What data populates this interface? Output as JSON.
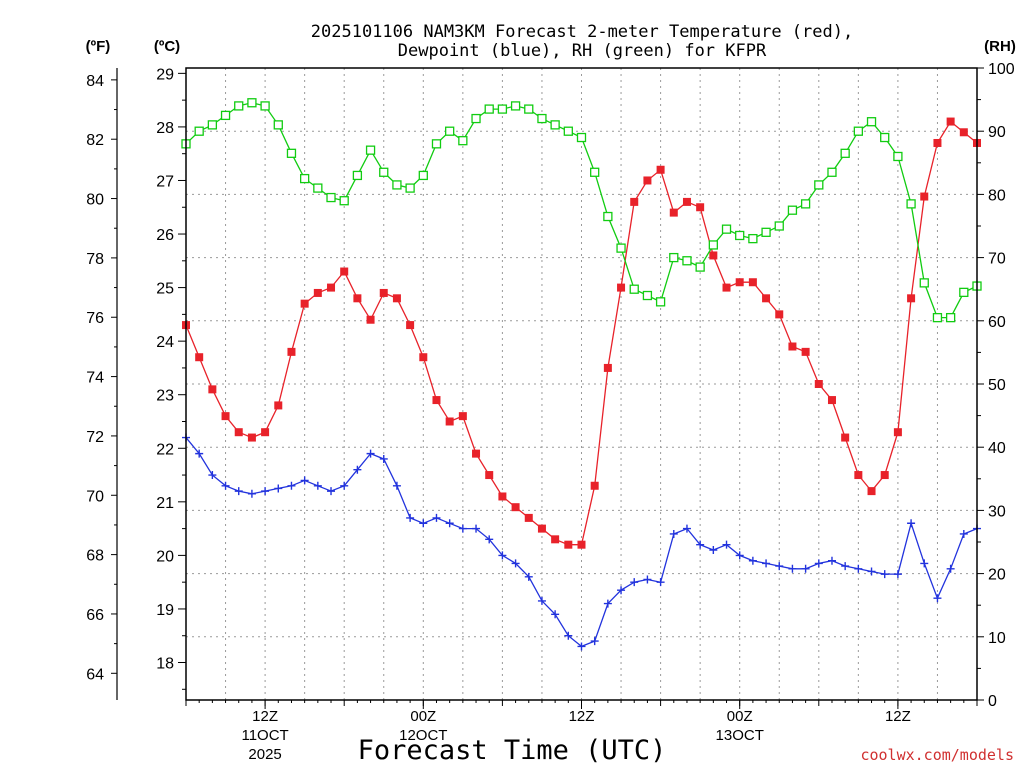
{
  "title": {
    "line1": "2025101106 NAM3KM Forecast 2-meter Temperature (red),",
    "line2": "Dewpoint (blue), RH (green) for KFPR"
  },
  "axes": {
    "f_unit": "(ºF)",
    "c_unit": "(ºC)",
    "rh_unit": "(RH)",
    "f_ticks": [
      "84",
      "82",
      "80",
      "78",
      "76",
      "74",
      "72",
      "70",
      "68",
      "66",
      "64"
    ],
    "c_ticks": [
      "29",
      "28",
      "27",
      "26",
      "25",
      "24",
      "23",
      "22",
      "21",
      "20",
      "19",
      "18"
    ],
    "rh_ticks": [
      "100",
      "90",
      "80",
      "70",
      "60",
      "50",
      "40",
      "30",
      "20",
      "10",
      "0"
    ]
  },
  "xaxis": {
    "title": "Forecast Time (UTC)",
    "ticks": [
      {
        "time": "12Z",
        "date": "11OCT",
        "year": "2025"
      },
      {
        "time": "00Z",
        "date": "12OCT",
        "year": ""
      },
      {
        "time": "12Z",
        "date": "",
        "year": ""
      },
      {
        "time": "00Z",
        "date": "13OCT",
        "year": ""
      },
      {
        "time": "12Z",
        "date": "",
        "year": ""
      }
    ]
  },
  "credit": "coolwx.com/models",
  "colors": {
    "temp": "#e8222a",
    "dewpoint": "#2233dd",
    "rh": "#11cc11"
  },
  "chart_data": {
    "type": "line",
    "title": "2025101106 NAM3KM Forecast 2-meter Temperature (red), Dewpoint (blue), RH (green) for KFPR",
    "xlabel": "Forecast Time (UTC)",
    "x_units": "forecast hours from 2025-10-11 06Z",
    "x": [
      0,
      1,
      2,
      3,
      4,
      5,
      6,
      7,
      8,
      9,
      10,
      11,
      12,
      13,
      14,
      15,
      16,
      17,
      18,
      19,
      20,
      21,
      22,
      23,
      24,
      25,
      26,
      27,
      28,
      29,
      30,
      31,
      32,
      33,
      34,
      35,
      36,
      37,
      38,
      39,
      40,
      41,
      42,
      43,
      44,
      45,
      46,
      47,
      48,
      49,
      50,
      51,
      52,
      53,
      54,
      55,
      56,
      57,
      58,
      59,
      60
    ],
    "xlim": [
      0,
      60
    ],
    "series": [
      {
        "name": "2-meter Temperature",
        "units": "°C",
        "axis": "left",
        "values": [
          24.3,
          23.7,
          23.1,
          22.6,
          22.3,
          22.2,
          22.3,
          22.8,
          23.8,
          24.7,
          24.9,
          25.0,
          25.3,
          24.8,
          24.4,
          24.9,
          24.8,
          24.3,
          23.7,
          22.9,
          22.5,
          22.6,
          21.9,
          21.5,
          21.1,
          20.9,
          20.7,
          20.5,
          20.3,
          20.2,
          20.2,
          21.3,
          23.5,
          25.0,
          26.6,
          27.0,
          27.2,
          26.4,
          26.6,
          26.5,
          25.6,
          25.0,
          25.1,
          25.1,
          24.8,
          24.5,
          23.9,
          23.8,
          23.2,
          22.9,
          22.2,
          21.5,
          21.2,
          21.5,
          22.3,
          24.8,
          26.7,
          27.7,
          28.1,
          27.9,
          27.7
        ]
      },
      {
        "name": "Dewpoint",
        "units": "°C",
        "axis": "left",
        "values": [
          22.2,
          21.9,
          21.5,
          21.3,
          21.2,
          21.15,
          21.2,
          21.25,
          21.3,
          21.4,
          21.3,
          21.2,
          21.3,
          21.6,
          21.9,
          21.8,
          21.3,
          20.7,
          20.6,
          20.7,
          20.6,
          20.5,
          20.5,
          20.3,
          20.0,
          19.85,
          19.6,
          19.15,
          18.9,
          18.5,
          18.3,
          18.4,
          19.1,
          19.35,
          19.5,
          19.55,
          19.5,
          20.4,
          20.5,
          20.2,
          20.1,
          20.2,
          20.0,
          19.9,
          19.85,
          19.8,
          19.75,
          19.75,
          19.85,
          19.9,
          19.8,
          19.75,
          19.7,
          19.65,
          19.65,
          20.6,
          19.85,
          19.2,
          19.75,
          20.4,
          20.5
        ]
      },
      {
        "name": "RH",
        "units": "%",
        "axis": "right",
        "ylim": [
          0,
          100
        ],
        "values": [
          88,
          90,
          91,
          92.5,
          94,
          94.5,
          94,
          91,
          86.5,
          82.5,
          81,
          79.5,
          79,
          83,
          87,
          83.5,
          81.5,
          81,
          83,
          88,
          90,
          88.5,
          92,
          93.5,
          93.5,
          94,
          93.5,
          92,
          91,
          90,
          89,
          83.5,
          76.5,
          71.5,
          65,
          64,
          63,
          70,
          69.5,
          68.5,
          72,
          74.5,
          73.5,
          73,
          74,
          75,
          77.5,
          78.5,
          81.5,
          83.5,
          86.5,
          90,
          91.5,
          89,
          86,
          78.5,
          66,
          60.5,
          60.5,
          64.5,
          65.5
        ]
      }
    ],
    "left_axis_celsius": {
      "label": "(ºC)",
      "ylim": [
        17.3,
        29.1
      ]
    },
    "left_axis_fahrenheit": {
      "label": "(ºF)",
      "ylim": [
        63.1,
        84.4
      ]
    },
    "right_axis": {
      "label": "(RH)",
      "ylim": [
        0,
        100
      ]
    },
    "grid": true
  }
}
